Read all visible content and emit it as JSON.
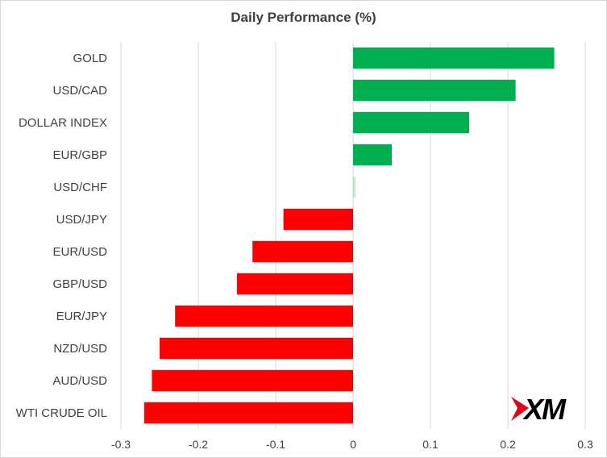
{
  "chart_data": {
    "type": "bar",
    "orientation": "horizontal",
    "title": "Daily Performance (%)",
    "xlabel": "",
    "ylabel": "",
    "categories": [
      "GOLD",
      "USD/CAD",
      "DOLLAR INDEX",
      "EUR/GBP",
      "USD/CHF",
      "USD/JPY",
      "EUR/USD",
      "GBP/USD",
      "EUR/JPY",
      "NZD/USD",
      "AUD/USD",
      "WTI CRUDE OIL"
    ],
    "values": [
      0.26,
      0.21,
      0.15,
      0.05,
      0.003,
      -0.09,
      -0.13,
      -0.15,
      -0.23,
      -0.25,
      -0.26,
      -0.27
    ],
    "xlim": [
      -0.3,
      0.3
    ],
    "xticks": [
      "-0.3",
      "-0.2",
      "-0.1",
      "0",
      "0.1",
      "0.2",
      "0.3"
    ],
    "grid": "vertical",
    "legend": "none",
    "colors": {
      "positive": "#00b050",
      "negative": "#ff0000",
      "grid": "#d9d9d9",
      "text": "#404040"
    }
  },
  "logo": {
    "text": "XM",
    "colors": {
      "mark": "#e2001a",
      "text": "#000000"
    }
  }
}
